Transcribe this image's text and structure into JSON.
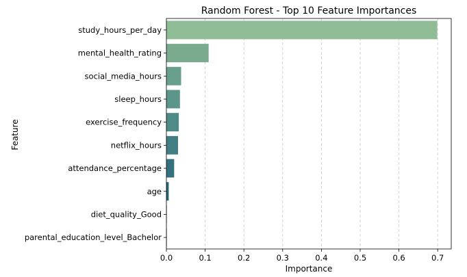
{
  "chart_data": {
    "type": "bar",
    "orientation": "horizontal",
    "title": "Random Forest - Top 10 Feature Importances",
    "xlabel": "Importance",
    "ylabel": "Feature",
    "xlim": [
      0,
      0.735
    ],
    "xticks": [
      0.0,
      0.1,
      0.2,
      0.3,
      0.4,
      0.5,
      0.6,
      0.7
    ],
    "xtick_labels": [
      "0.0",
      "0.1",
      "0.2",
      "0.3",
      "0.4",
      "0.5",
      "0.6",
      "0.7"
    ],
    "grid": "x-dashed",
    "categories": [
      "study_hours_per_day",
      "mental_health_rating",
      "social_media_hours",
      "sleep_hours",
      "exercise_frequency",
      "netflix_hours",
      "attendance_percentage",
      "age",
      "diet_quality_Good",
      "parental_education_level_Bachelor"
    ],
    "values": [
      0.699,
      0.109,
      0.038,
      0.035,
      0.032,
      0.03,
      0.02,
      0.006,
      0.001,
      0.001
    ],
    "colors": [
      "#8fbc94",
      "#7aab8f",
      "#68a08d",
      "#5c968b",
      "#4e8b87",
      "#417f84",
      "#34707e",
      "#2a6478",
      "#235972",
      "#1e4e6b"
    ]
  }
}
